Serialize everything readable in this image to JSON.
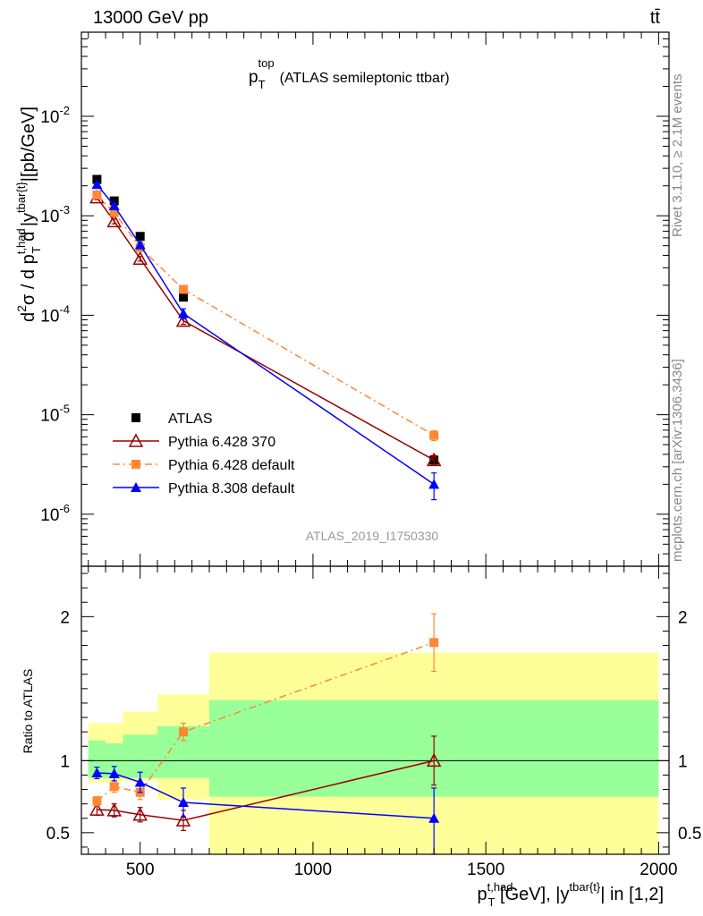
{
  "header": {
    "left": "13000 GeV pp",
    "right": "tt̄"
  },
  "side_labels": {
    "rivet": "Rivet 3.1.10, ≥ 2.1M events",
    "mcplots": "mcplots.cern.ch [arXiv:1306.3436]"
  },
  "chart_data": [
    {
      "type": "line",
      "panel": "main",
      "title": {
        "main": "p",
        "sub": "T",
        "sup": "top",
        "rest": "(ATLAS semileptonic ttbar)"
      },
      "analysis_id": "ATLAS_2019_I1750330",
      "ylabel": {
        "p1": "d",
        "s1": "2",
        "p2": "σ / d p",
        "s2": "t,had",
        "b2": "T",
        "p3": " d |y",
        "s3": "tbar{t}",
        "p4": "|[pb/GeV]"
      },
      "yscale": "log",
      "ylim": [
        3e-07,
        0.07
      ],
      "xlim": [
        330,
        2030
      ],
      "ytick_labels": [
        {
          "base": "10",
          "exp": "-2",
          "value": 0.01
        },
        {
          "base": "10",
          "exp": "-3",
          "value": 0.001
        },
        {
          "base": "10",
          "exp": "-4",
          "value": 0.0001
        },
        {
          "base": "10",
          "exp": "-5",
          "value": 1e-05
        },
        {
          "base": "10",
          "exp": "-6",
          "value": 1e-06
        }
      ],
      "legend_position": "bottom-left",
      "series": [
        {
          "name": "ATLAS",
          "color": "#000000",
          "marker": "square",
          "line": "none",
          "x": [
            375,
            425,
            500,
            625,
            1350
          ],
          "y": [
            0.00232,
            0.00141,
            0.00062,
            0.000152,
            3.5e-06
          ],
          "err_lo": [
            0,
            0,
            0,
            0,
            0
          ],
          "err_hi": [
            0,
            0,
            0,
            0,
            0
          ]
        },
        {
          "name": "Pythia 6.428 370",
          "color": "#990000",
          "marker": "open-triangle",
          "line": "solid",
          "x": [
            375,
            425,
            500,
            625,
            1350
          ],
          "y": [
            0.00153,
            0.00088,
            0.00037,
            8.8e-05,
            3.5e-06
          ],
          "err_lo": [
            8e-05,
            5e-05,
            2e-05,
            7e-06,
            4e-07
          ],
          "err_hi": [
            8e-05,
            5e-05,
            2e-05,
            7e-06,
            4e-07
          ]
        },
        {
          "name": "Pythia 6.428 default",
          "color": "#ff8833",
          "marker": "square",
          "line": "dashdot",
          "x": [
            375,
            425,
            500,
            625,
            1350
          ],
          "y": [
            0.00162,
            0.00108,
            0.00048,
            0.000182,
            6.2e-06
          ],
          "err_lo": [
            5e-05,
            4e-05,
            2e-05,
            1e-05,
            7e-07
          ],
          "err_hi": [
            5e-05,
            4e-05,
            2e-05,
            1e-05,
            7e-07
          ]
        },
        {
          "name": "Pythia 8.308 default",
          "color": "#0000ff",
          "marker": "triangle",
          "line": "solid",
          "x": [
            375,
            425,
            500,
            625,
            1350
          ],
          "y": [
            0.00206,
            0.00126,
            0.00051,
            0.000104,
            2e-06
          ],
          "err_lo": [
            8e-05,
            6e-05,
            3e-05,
            1.2e-05,
            6e-07
          ],
          "err_hi": [
            8e-05,
            6e-05,
            3e-05,
            1.2e-05,
            6e-07
          ]
        }
      ]
    },
    {
      "type": "line",
      "panel": "ratio",
      "ylabel": "Ratio to ATLAS",
      "yscale": "linear",
      "ylim": [
        0.35,
        2.35
      ],
      "xlim": [
        330,
        2030
      ],
      "xlabel": {
        "p1": "p",
        "s1": "t,had",
        "b1": "T",
        "p2": " [GeV], |y",
        "s2": "tbar{t}",
        "p3": "| in [1,2]"
      },
      "xtick_labels": [
        "500",
        "1000",
        "1500",
        "2000"
      ],
      "xticks": [
        500,
        1000,
        1500,
        2000
      ],
      "ytick_labels": [
        "0.5",
        "1",
        "2"
      ],
      "yticks": [
        0.5,
        1,
        2
      ],
      "reference_line": 1,
      "bands": [
        {
          "x0": 350,
          "x1": 400,
          "yellow": [
            0.85,
            1.26
          ],
          "green": [
            0.88,
            1.14
          ]
        },
        {
          "x0": 400,
          "x1": 450,
          "yellow": [
            0.85,
            1.26
          ],
          "green": [
            0.88,
            1.12
          ]
        },
        {
          "x0": 450,
          "x1": 550,
          "yellow": [
            0.86,
            1.34
          ],
          "green": [
            0.88,
            1.18
          ]
        },
        {
          "x0": 550,
          "x1": 700,
          "yellow": [
            0.73,
            1.46
          ],
          "green": [
            0.88,
            1.24
          ]
        },
        {
          "x0": 700,
          "x1": 2000,
          "yellow": [
            0.3,
            1.75
          ],
          "green": [
            0.75,
            1.42
          ]
        }
      ],
      "series": [
        {
          "name": "Pythia 6.428 370",
          "color": "#990000",
          "marker": "open-triangle",
          "line": "solid",
          "x": [
            375,
            425,
            500,
            625,
            1350
          ],
          "y": [
            0.66,
            0.655,
            0.625,
            0.585,
            1.0
          ],
          "err_lo": [
            0.04,
            0.045,
            0.05,
            0.07,
            0.17
          ],
          "err_hi": [
            0.04,
            0.045,
            0.05,
            0.07,
            0.17
          ]
        },
        {
          "name": "Pythia 6.428 default",
          "color": "#ff8833",
          "marker": "square",
          "line": "dashdot",
          "x": [
            375,
            425,
            500,
            625,
            1350
          ],
          "y": [
            0.72,
            0.82,
            0.78,
            1.2,
            1.82
          ],
          "err_lo": [
            0.03,
            0.04,
            0.05,
            0.06,
            0.2
          ],
          "err_hi": [
            0.03,
            0.04,
            0.05,
            0.06,
            0.2
          ]
        },
        {
          "name": "Pythia 8.308 default",
          "color": "#0000ff",
          "marker": "triangle",
          "line": "solid",
          "x": [
            375,
            425,
            500,
            625,
            1350
          ],
          "y": [
            0.915,
            0.91,
            0.85,
            0.71,
            0.6
          ],
          "err_lo": [
            0.04,
            0.05,
            0.07,
            0.1,
            0.25
          ],
          "err_hi": [
            0.04,
            0.05,
            0.07,
            0.1,
            0.21
          ]
        }
      ]
    }
  ]
}
